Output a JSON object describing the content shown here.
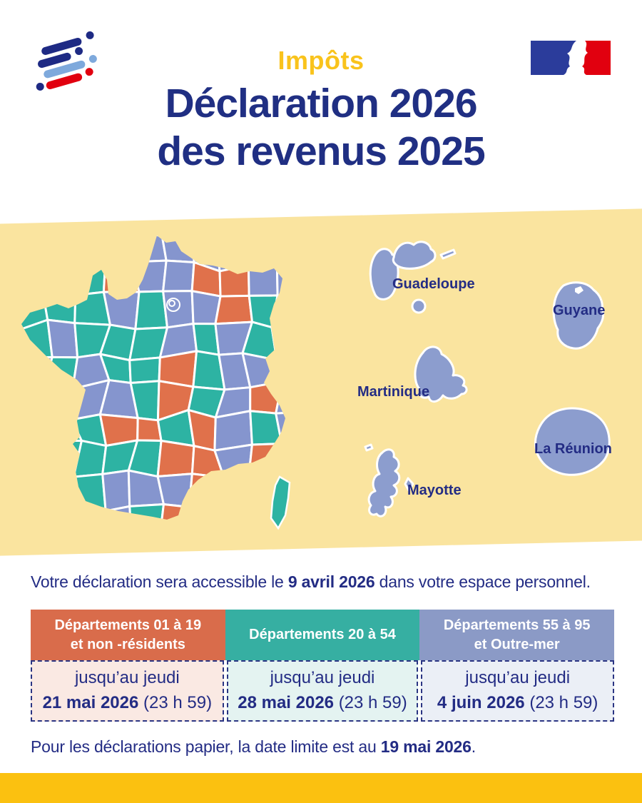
{
  "header": {
    "kicker": "Impôts",
    "title_line1": "Déclaration 2026",
    "title_line2": "des revenus 2025"
  },
  "map": {
    "pattern": [
      "TTTTBBBBBB",
      "TTTOBBOOBB",
      "TTTBTBBOTB",
      "TBTTTBTBTB",
      "BTBTTOTBBT",
      "TTBBTOTBOB",
      "TTTOOTOBTB",
      "TTTTTOOBOO",
      "TTTBBBOOTB",
      "TBBBTOOBTT"
    ],
    "palette": {
      "T": "#2DB3A3",
      "O": "#E0714B",
      "B": "#8595CE"
    },
    "territories": [
      {
        "name": "Guadeloupe"
      },
      {
        "name": "Guyane"
      },
      {
        "name": "Martinique"
      },
      {
        "name": "La Réunion"
      },
      {
        "name": "Mayotte"
      }
    ]
  },
  "access_note": {
    "prefix": "Votre déclaration sera accessible le ",
    "bold": "9 avril 2026",
    "suffix": " dans votre espace personnel."
  },
  "table": {
    "columns": [
      {
        "header_line1": "Départements 01 à 19",
        "header_line2": "et non -résidents",
        "intro": "jusqu’au jeudi",
        "date": "21 mai 2026",
        "time": "(23 h 59)"
      },
      {
        "header_line1": "Départements 20 à 54",
        "header_line2": "",
        "intro": "jusqu’au jeudi",
        "date": "28 mai 2026",
        "time": "(23 h 59)"
      },
      {
        "header_line1": "Départements 55 à 95",
        "header_line2": "et Outre-mer",
        "intro": "jusqu’au jeudi",
        "date": "4 juin 2026",
        "time": "(23 h 59)"
      }
    ]
  },
  "paper_note": {
    "prefix": "Pour les déclarations papier, la date limite est au ",
    "bold": "19 mai 2026",
    "suffix": "."
  },
  "colors": {
    "navy": "#232C84",
    "title_navy": "#202F83",
    "kicker_yellow": "#F9C31C",
    "band_yellow": "#FAE49F",
    "footer_gold": "#FBC110",
    "overseas_blue": "#8C9DCE",
    "header_orange": "#D96C4B",
    "header_teal": "#36AFA2",
    "header_blue": "#8B9AC6",
    "cell_pink": "#FAE9E3",
    "cell_teal": "#E4F3F1",
    "cell_blue": "#EBEFF6",
    "dashed_border": "#2B3583",
    "logo_navy": "#1E2A84",
    "logo_lightblue": "#7EA9DC",
    "logo_red": "#E1000F",
    "gov_blue": "#2B3C9B",
    "gov_red": "#E1000F"
  }
}
